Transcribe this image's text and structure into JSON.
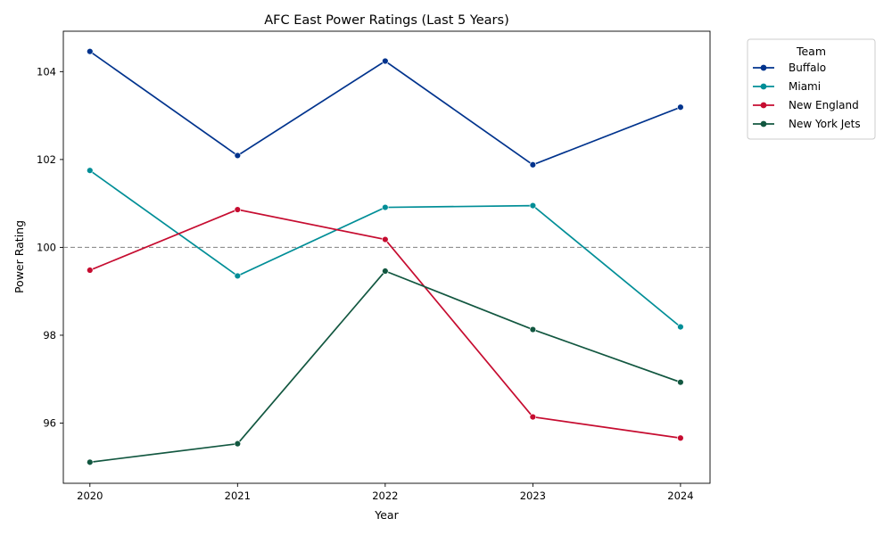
{
  "chart_data": {
    "type": "line",
    "title": "AFC East Power Ratings (Last 5 Years)",
    "xlabel": "Year",
    "ylabel": "Power Rating",
    "x": [
      2020,
      2021,
      2022,
      2023,
      2024
    ],
    "xticks": [
      "2020",
      "2021",
      "2022",
      "2023",
      "2024"
    ],
    "yticks": [
      96,
      98,
      100,
      102,
      104
    ],
    "xlim": [
      2019.82,
      2024.2
    ],
    "ylim": [
      94.63,
      104.92
    ],
    "reference_line": {
      "y": 100,
      "style": "dashed",
      "color": "#808080"
    },
    "grid": false,
    "legend": {
      "title": "Team",
      "placement": "outside-top-right"
    },
    "series": [
      {
        "name": "Buffalo",
        "color": "#00338D",
        "values": [
          104.46,
          102.09,
          104.24,
          101.88,
          103.19
        ]
      },
      {
        "name": "Miami",
        "color": "#008E97",
        "values": [
          101.75,
          99.35,
          100.91,
          100.95,
          98.19
        ]
      },
      {
        "name": "New England",
        "color": "#C60C30",
        "values": [
          99.48,
          100.86,
          100.18,
          96.14,
          95.66
        ]
      },
      {
        "name": "New York Jets",
        "color": "#125740",
        "values": [
          95.11,
          95.53,
          99.46,
          98.13,
          96.93
        ]
      }
    ]
  }
}
